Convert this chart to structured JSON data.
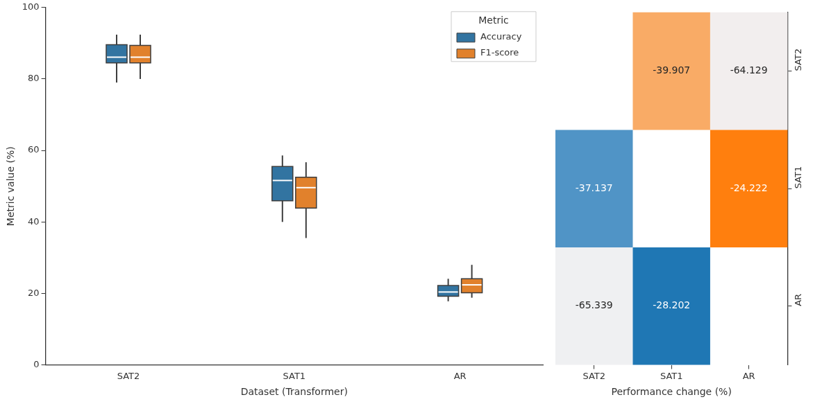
{
  "chart_data": [
    {
      "type": "box",
      "categories": [
        "SAT2",
        "SAT1",
        "AR"
      ],
      "xlabel": "Dataset (Transformer)",
      "ylabel": "Metric value (%)",
      "ylim": [
        0,
        100
      ],
      "yticks": [
        0,
        20,
        40,
        60,
        80,
        100
      ],
      "grid": false,
      "legend": "top right",
      "legend_title": "Metric",
      "series": [
        {
          "name": "Accuracy",
          "color": "#3274a1",
          "boxes": [
            {
              "low": 79,
              "q1": 84.5,
              "median": 86.1,
              "q3": 89.6,
              "high": 92.4
            },
            {
              "low": 40,
              "q1": 45.9,
              "median": 51.6,
              "q3": 55.5,
              "high": 58.6
            },
            {
              "low": 17.8,
              "q1": 19.2,
              "median": 20.4,
              "q3": 22.2,
              "high": 24.1
            }
          ]
        },
        {
          "name": "F1-score",
          "color": "#e1812c",
          "boxes": [
            {
              "low": 80,
              "q1": 84.5,
              "median": 86.1,
              "q3": 89.4,
              "high": 92.4
            },
            {
              "low": 35.5,
              "q1": 43.9,
              "median": 49.6,
              "q3": 52.5,
              "high": 56.7
            },
            {
              "low": 18.8,
              "q1": 20.2,
              "median": 22.4,
              "q3": 24.1,
              "high": 28
            }
          ]
        }
      ]
    },
    {
      "type": "heatmap",
      "categories": [
        "SAT2",
        "SAT1",
        "AR"
      ],
      "y_categories": [
        "SAT2",
        "SAT1",
        "AR"
      ],
      "xlabel": "Performance change (%)",
      "data_labels": true,
      "cells": [
        [
          null,
          -39.907,
          -64.129
        ],
        [
          -37.137,
          null,
          -24.222
        ],
        [
          -65.339,
          -28.202,
          null
        ]
      ],
      "colors": [
        [
          null,
          "#f9ab66",
          "#f2eeee"
        ],
        [
          "#5094c6",
          null,
          "#ff7f0e"
        ],
        [
          "#eff0f2",
          "#1f77b4",
          null
        ]
      ]
    }
  ]
}
